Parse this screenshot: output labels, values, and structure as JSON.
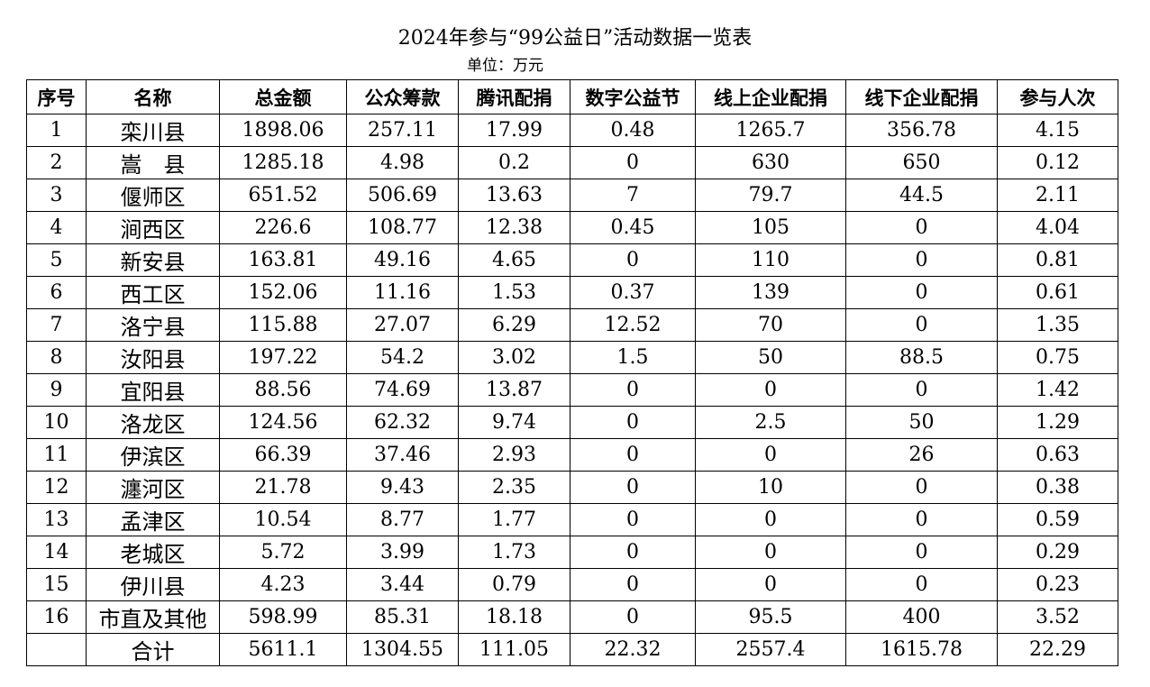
{
  "title": "2024年参与“99公益日”活动数据一览表",
  "unit": "单位：万元",
  "table": {
    "headers": [
      "序号",
      "名称",
      "总金额",
      "公众筹款",
      "腾讯配捐",
      "数字公益节",
      "线上企业配捐",
      "线下企业配捐",
      "参与人次"
    ],
    "rows": [
      [
        "1",
        "栾川县",
        "1898.06",
        "257.11",
        "17.99",
        "0.48",
        "1265.7",
        "356.78",
        "4.15"
      ],
      [
        "2",
        "嵩　县",
        "1285.18",
        "4.98",
        "0.2",
        "0",
        "630",
        "650",
        "0.12"
      ],
      [
        "3",
        "偃师区",
        "651.52",
        "506.69",
        "13.63",
        "7",
        "79.7",
        "44.5",
        "2.11"
      ],
      [
        "4",
        "涧西区",
        "226.6",
        "108.77",
        "12.38",
        "0.45",
        "105",
        "0",
        "4.04"
      ],
      [
        "5",
        "新安县",
        "163.81",
        "49.16",
        "4.65",
        "0",
        "110",
        "0",
        "0.81"
      ],
      [
        "6",
        "西工区",
        "152.06",
        "11.16",
        "1.53",
        "0.37",
        "139",
        "0",
        "0.61"
      ],
      [
        "7",
        "洛宁县",
        "115.88",
        "27.07",
        "6.29",
        "12.52",
        "70",
        "0",
        "1.35"
      ],
      [
        "8",
        "汝阳县",
        "197.22",
        "54.2",
        "3.02",
        "1.5",
        "50",
        "88.5",
        "0.75"
      ],
      [
        "9",
        "宜阳县",
        "88.56",
        "74.69",
        "13.87",
        "0",
        "0",
        "0",
        "1.42"
      ],
      [
        "10",
        "洛龙区",
        "124.56",
        "62.32",
        "9.74",
        "0",
        "2.5",
        "50",
        "1.29"
      ],
      [
        "11",
        "伊滨区",
        "66.39",
        "37.46",
        "2.93",
        "0",
        "0",
        "26",
        "0.63"
      ],
      [
        "12",
        "瀍河区",
        "21.78",
        "9.43",
        "2.35",
        "0",
        "10",
        "0",
        "0.38"
      ],
      [
        "13",
        "孟津区",
        "10.54",
        "8.77",
        "1.77",
        "0",
        "0",
        "0",
        "0.59"
      ],
      [
        "14",
        "老城区",
        "5.72",
        "3.99",
        "1.73",
        "0",
        "0",
        "0",
        "0.29"
      ],
      [
        "15",
        "伊川县",
        "4.23",
        "3.44",
        "0.79",
        "0",
        "0",
        "0",
        "0.23"
      ],
      [
        "16",
        "市直及其他",
        "598.99",
        "85.31",
        "18.18",
        "0",
        "95.5",
        "400",
        "3.52"
      ]
    ],
    "total": [
      "",
      "合计",
      "5611.1",
      "1304.55",
      "111.05",
      "22.32",
      "2557.4",
      "1615.78",
      "22.29"
    ]
  }
}
